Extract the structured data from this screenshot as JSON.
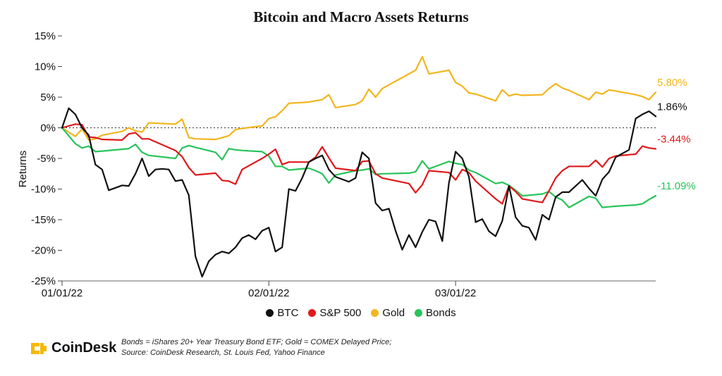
{
  "title": "Bitcoin and Macro Assets Returns",
  "footnote": {
    "line1": "Bonds = iShares 20+ Year Treasury Bond ETF; Gold = COMEX Delayed Price;",
    "line2": "Source: CoinDesk Research, St. Louis Fed, Yahoo Finance"
  },
  "brand": {
    "name": "CoinDesk",
    "color": "#f5b800"
  },
  "chart_data": {
    "type": "line",
    "title": "Bitcoin and Macro Assets Returns",
    "xlabel": "",
    "ylabel": "Returns",
    "ylim": [
      -25,
      15
    ],
    "yticks": [
      15,
      10,
      5,
      0,
      -5,
      -10,
      -15,
      -20,
      -25
    ],
    "ytick_labels": [
      "15%",
      "10%",
      "5%",
      "0%",
      "-5%",
      "-10%",
      "-15%",
      "-20%",
      "-25%"
    ],
    "x_range": [
      "2022-01-01",
      "2022-03-31"
    ],
    "xticks": [
      "01/01/22",
      "02/01/22",
      "03/01/22"
    ],
    "xtick_dates": [
      "2022-01-01",
      "2022-02-01",
      "2022-03-01"
    ],
    "zero_line": "dotted",
    "grid": false,
    "legend_position": "bottom",
    "series": [
      {
        "name": "BTC",
        "color": "#111111",
        "end_label": "1.86%",
        "x": [
          "2022-01-01",
          "2022-01-02",
          "2022-01-03",
          "2022-01-04",
          "2022-01-05",
          "2022-01-06",
          "2022-01-07",
          "2022-01-08",
          "2022-01-09",
          "2022-01-10",
          "2022-01-11",
          "2022-01-12",
          "2022-01-13",
          "2022-01-14",
          "2022-01-15",
          "2022-01-16",
          "2022-01-17",
          "2022-01-18",
          "2022-01-19",
          "2022-01-20",
          "2022-01-21",
          "2022-01-22",
          "2022-01-23",
          "2022-01-24",
          "2022-01-25",
          "2022-01-26",
          "2022-01-27",
          "2022-01-28",
          "2022-01-29",
          "2022-01-30",
          "2022-01-31",
          "2022-02-01",
          "2022-02-02",
          "2022-02-03",
          "2022-02-04",
          "2022-02-05",
          "2022-02-06",
          "2022-02-07",
          "2022-02-08",
          "2022-02-09",
          "2022-02-10",
          "2022-02-11",
          "2022-02-12",
          "2022-02-13",
          "2022-02-14",
          "2022-02-15",
          "2022-02-16",
          "2022-02-17",
          "2022-02-18",
          "2022-02-19",
          "2022-02-20",
          "2022-02-21",
          "2022-02-22",
          "2022-02-23",
          "2022-02-24",
          "2022-02-25",
          "2022-02-26",
          "2022-02-27",
          "2022-02-28",
          "2022-03-01",
          "2022-03-02",
          "2022-03-03",
          "2022-03-04",
          "2022-03-05",
          "2022-03-06",
          "2022-03-07",
          "2022-03-08",
          "2022-03-09",
          "2022-03-10",
          "2022-03-11",
          "2022-03-12",
          "2022-03-13",
          "2022-03-14",
          "2022-03-15",
          "2022-03-16",
          "2022-03-17",
          "2022-03-18",
          "2022-03-19",
          "2022-03-20",
          "2022-03-21",
          "2022-03-22",
          "2022-03-23",
          "2022-03-24",
          "2022-03-25",
          "2022-03-26",
          "2022-03-27",
          "2022-03-28",
          "2022-03-29",
          "2022-03-30",
          "2022-03-31"
        ],
        "values": [
          0,
          3.2,
          2.2,
          0,
          -1.2,
          -6,
          -6.8,
          -10.2,
          -9.8,
          -9.4,
          -9.5,
          -7.5,
          -5,
          -7.9,
          -6.8,
          -6.7,
          -6.8,
          -8.7,
          -8.5,
          -11,
          -21,
          -24.3,
          -21.8,
          -20.7,
          -20.2,
          -20.5,
          -19.5,
          -18,
          -17.5,
          -18.2,
          -16.8,
          -16.3,
          -20.2,
          -19.5,
          -10,
          -10.3,
          -8.2,
          -5.6,
          -5,
          -4.5,
          -6.8,
          -8,
          -8.4,
          -8.8,
          -8.2,
          -4,
          -5,
          -12.3,
          -13.5,
          -13.2,
          -16.8,
          -19.9,
          -17.5,
          -19.5,
          -17,
          -15,
          -15.3,
          -18.5,
          -9,
          -3.9,
          -5,
          -8,
          -15.4,
          -14.9,
          -16.9,
          -17.7,
          -15.2,
          -9.5,
          -14.6,
          -16,
          -16.3,
          -18.3,
          -14.2,
          -15,
          -11.3,
          -10.5,
          -10.5,
          -9.5,
          -8.5,
          -9.9,
          -11.1,
          -8.4,
          -7.2,
          -4.8,
          -4.2,
          -3.6,
          1.5,
          2.2,
          2.7,
          1.86
        ]
      },
      {
        "name": "S&P 500",
        "color": "#e0191b",
        "end_label": "-3.44%",
        "x": [
          "2022-01-01",
          "2022-01-03",
          "2022-01-04",
          "2022-01-05",
          "2022-01-06",
          "2022-01-07",
          "2022-01-10",
          "2022-01-11",
          "2022-01-12",
          "2022-01-13",
          "2022-01-14",
          "2022-01-18",
          "2022-01-19",
          "2022-01-20",
          "2022-01-21",
          "2022-01-24",
          "2022-01-25",
          "2022-01-26",
          "2022-01-27",
          "2022-01-28",
          "2022-01-31",
          "2022-02-01",
          "2022-02-02",
          "2022-02-03",
          "2022-02-04",
          "2022-02-07",
          "2022-02-08",
          "2022-02-09",
          "2022-02-10",
          "2022-02-11",
          "2022-02-14",
          "2022-02-15",
          "2022-02-16",
          "2022-02-17",
          "2022-02-18",
          "2022-02-22",
          "2022-02-23",
          "2022-02-24",
          "2022-02-25",
          "2022-02-28",
          "2022-03-01",
          "2022-03-02",
          "2022-03-03",
          "2022-03-04",
          "2022-03-07",
          "2022-03-08",
          "2022-03-09",
          "2022-03-10",
          "2022-03-11",
          "2022-03-14",
          "2022-03-15",
          "2022-03-16",
          "2022-03-17",
          "2022-03-18",
          "2022-03-21",
          "2022-03-22",
          "2022-03-23",
          "2022-03-24",
          "2022-03-25",
          "2022-03-28",
          "2022-03-29",
          "2022-03-30",
          "2022-03-31"
        ],
        "values": [
          0,
          0.6,
          0.5,
          -1.5,
          -1.6,
          -1.9,
          -2,
          -1,
          -0.8,
          -1.8,
          -1.8,
          -3.7,
          -4.7,
          -6.5,
          -7.7,
          -7.4,
          -8.6,
          -8.7,
          -9.2,
          -6.8,
          -5,
          -4.3,
          -3.5,
          -6,
          -5.6,
          -5.6,
          -4.8,
          -3.1,
          -4.9,
          -6.6,
          -7,
          -5.5,
          -5.4,
          -7.5,
          -8.2,
          -9.1,
          -10.6,
          -9.3,
          -7,
          -7.3,
          -8.5,
          -6.8,
          -7.3,
          -8.7,
          -11.6,
          -12.4,
          -9.5,
          -10.4,
          -11.6,
          -12.2,
          -10.3,
          -8.2,
          -7,
          -6.3,
          -6.3,
          -5.3,
          -6.4,
          -5,
          -4.6,
          -4.3,
          -3,
          -3.3,
          -3.44
        ]
      },
      {
        "name": "Gold",
        "color": "#f2b51d",
        "end_label": "5.80%",
        "x": [
          "2022-01-01",
          "2022-01-03",
          "2022-01-04",
          "2022-01-05",
          "2022-01-06",
          "2022-01-07",
          "2022-01-10",
          "2022-01-11",
          "2022-01-12",
          "2022-01-13",
          "2022-01-14",
          "2022-01-18",
          "2022-01-19",
          "2022-01-20",
          "2022-01-21",
          "2022-01-24",
          "2022-01-25",
          "2022-01-26",
          "2022-01-27",
          "2022-01-28",
          "2022-01-31",
          "2022-02-01",
          "2022-02-02",
          "2022-02-03",
          "2022-02-04",
          "2022-02-07",
          "2022-02-08",
          "2022-02-09",
          "2022-02-10",
          "2022-02-11",
          "2022-02-14",
          "2022-02-15",
          "2022-02-16",
          "2022-02-17",
          "2022-02-18",
          "2022-02-22",
          "2022-02-23",
          "2022-02-24",
          "2022-02-25",
          "2022-02-28",
          "2022-03-01",
          "2022-03-02",
          "2022-03-03",
          "2022-03-04",
          "2022-03-07",
          "2022-03-08",
          "2022-03-09",
          "2022-03-10",
          "2022-03-11",
          "2022-03-14",
          "2022-03-15",
          "2022-03-16",
          "2022-03-17",
          "2022-03-18",
          "2022-03-21",
          "2022-03-22",
          "2022-03-23",
          "2022-03-24",
          "2022-03-25",
          "2022-03-28",
          "2022-03-29",
          "2022-03-30",
          "2022-03-31"
        ],
        "values": [
          0,
          -1.4,
          -0.2,
          -2,
          -1.8,
          -1.2,
          -0.6,
          0,
          -0.5,
          -0.7,
          0.8,
          0.6,
          1.4,
          -1.6,
          -1.8,
          -1.9,
          -1.6,
          -1.3,
          -0.3,
          -0.1,
          0.3,
          1.5,
          1.8,
          2.8,
          4,
          4.2,
          4.4,
          4.6,
          5.4,
          3.3,
          3.8,
          4.4,
          6.3,
          5,
          6.4,
          8.8,
          9.4,
          11.6,
          8.8,
          9.4,
          7.4,
          6.8,
          5.7,
          5.5,
          4.4,
          6.2,
          5.2,
          5.5,
          5.3,
          5.4,
          6.4,
          7.2,
          6.5,
          6.1,
          4.6,
          5.8,
          5.5,
          6.2,
          6,
          5.4,
          5.1,
          4.6,
          5.8
        ]
      },
      {
        "name": "Bonds",
        "color": "#27c45a",
        "end_label": "-11.09%",
        "x": [
          "2022-01-01",
          "2022-01-03",
          "2022-01-04",
          "2022-01-05",
          "2022-01-06",
          "2022-01-07",
          "2022-01-10",
          "2022-01-11",
          "2022-01-12",
          "2022-01-13",
          "2022-01-14",
          "2022-01-18",
          "2022-01-19",
          "2022-01-20",
          "2022-01-21",
          "2022-01-24",
          "2022-01-25",
          "2022-01-26",
          "2022-01-27",
          "2022-01-28",
          "2022-01-31",
          "2022-02-01",
          "2022-02-02",
          "2022-02-03",
          "2022-02-04",
          "2022-02-07",
          "2022-02-08",
          "2022-02-09",
          "2022-02-10",
          "2022-02-11",
          "2022-02-14",
          "2022-02-15",
          "2022-02-16",
          "2022-02-17",
          "2022-02-18",
          "2022-02-22",
          "2022-02-23",
          "2022-02-24",
          "2022-02-25",
          "2022-02-28",
          "2022-03-01",
          "2022-03-02",
          "2022-03-03",
          "2022-03-04",
          "2022-03-07",
          "2022-03-08",
          "2022-03-09",
          "2022-03-10",
          "2022-03-11",
          "2022-03-14",
          "2022-03-15",
          "2022-03-16",
          "2022-03-17",
          "2022-03-18",
          "2022-03-21",
          "2022-03-22",
          "2022-03-23",
          "2022-03-24",
          "2022-03-25",
          "2022-03-28",
          "2022-03-29",
          "2022-03-30",
          "2022-03-31"
        ],
        "values": [
          0,
          -2.6,
          -3.3,
          -3,
          -3.9,
          -3.8,
          -3.5,
          -3.4,
          -2.7,
          -4,
          -4.5,
          -5,
          -3.3,
          -2.9,
          -3.2,
          -4,
          -5.2,
          -3.4,
          -3.6,
          -3.7,
          -3.9,
          -4.6,
          -6.3,
          -6.3,
          -6.9,
          -6.6,
          -7,
          -7.5,
          -9,
          -7.7,
          -7,
          -6.9,
          -6.7,
          -7.6,
          -7.5,
          -7.4,
          -7.2,
          -5.4,
          -6.7,
          -5.5,
          -5.8,
          -6,
          -6.9,
          -7.3,
          -9.1,
          -8.9,
          -9.4,
          -10.2,
          -11.1,
          -10.8,
          -10.4,
          -11.3,
          -11.8,
          -13,
          -11.2,
          -11.5,
          -13,
          -12.9,
          -12.8,
          -12.6,
          -12.4,
          -11.7,
          -11.09
        ]
      }
    ]
  }
}
